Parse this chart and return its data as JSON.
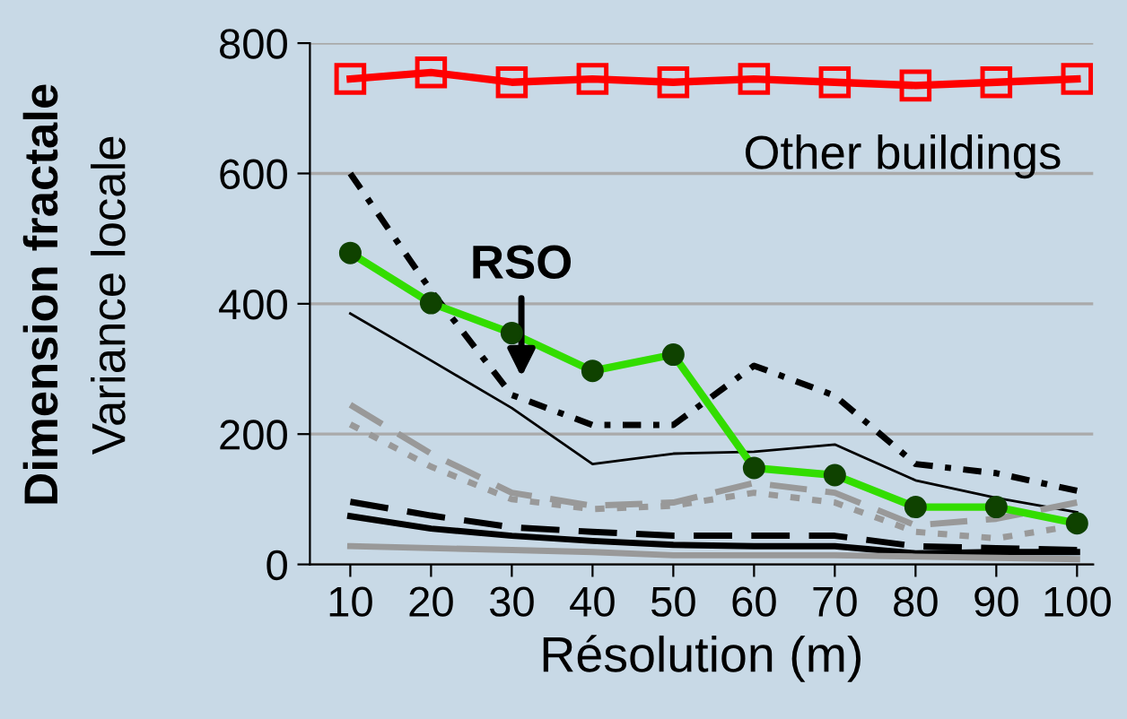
{
  "chart_data": {
    "type": "line",
    "xlabel": "Résolution (m)",
    "ylabel": "Dimension fractale\nVariance locale",
    "x": [
      10,
      20,
      30,
      40,
      50,
      60,
      70,
      80,
      90,
      100
    ],
    "xlim": [
      5,
      102
    ],
    "xticks": [
      10,
      20,
      30,
      40,
      50,
      60,
      70,
      80,
      90,
      100
    ],
    "ylim": [
      0,
      800
    ],
    "yticks": [
      0,
      200,
      400,
      600,
      800
    ],
    "grid": "y",
    "series": [
      {
        "color": "#ff0000",
        "marker": "square",
        "line_style": "solid",
        "values": [
          745,
          755,
          740,
          745,
          740,
          745,
          740,
          735,
          740,
          745
        ]
      },
      {
        "color": "#000000",
        "marker": "none",
        "line_style": "dashdot",
        "values": [
          600,
          420,
          260,
          214,
          214,
          305,
          259,
          154,
          140,
          113
        ]
      },
      {
        "color": "#000000",
        "marker": "none",
        "line_style": "solid",
        "values": [
          385,
          313,
          240,
          154,
          170,
          173,
          184,
          129,
          102,
          80
        ]
      },
      {
        "color": "#999999",
        "marker": "none",
        "line_style": "dashed",
        "values": [
          245,
          170,
          110,
          90,
          95,
          125,
          110,
          60,
          70,
          95
        ]
      },
      {
        "color": "#999999",
        "marker": "none",
        "line_style": "dotted",
        "values": [
          215,
          150,
          100,
          85,
          90,
          110,
          95,
          50,
          40,
          60
        ]
      },
      {
        "color": "#000000",
        "marker": "none",
        "line_style": "dashed",
        "values": [
          96,
          75,
          57,
          50,
          44,
          44,
          44,
          28,
          25,
          22
        ]
      },
      {
        "color": "#000000",
        "marker": "none",
        "line_style": "solid",
        "values": [
          74,
          55,
          44,
          36,
          30,
          28,
          28,
          17,
          19,
          19
        ]
      },
      {
        "color": "#999999",
        "marker": "none",
        "line_style": "solid",
        "values": [
          28,
          25,
          22,
          19,
          14,
          14,
          14,
          12,
          10,
          8
        ]
      },
      {
        "color": "#33dd00",
        "marker": "circle",
        "line_style": "solid",
        "values": [
          478,
          401,
          355,
          297,
          322,
          148,
          137,
          88,
          88,
          63
        ]
      }
    ],
    "annotations": [
      "Other buildings",
      "RSO"
    ]
  }
}
